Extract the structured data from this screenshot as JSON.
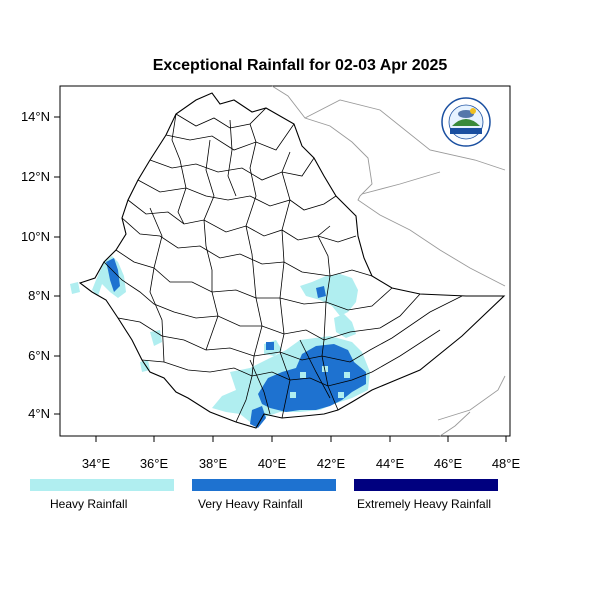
{
  "title": "Exceptional Rainfall for 02-03 Apr 2025",
  "axes": {
    "x_ticks": [
      "34°E",
      "36°E",
      "38°E",
      "40°E",
      "42°E",
      "44°E",
      "46°E",
      "48°E"
    ],
    "y_ticks": [
      "14°N",
      "12°N",
      "10°N",
      "8°N",
      "6°N",
      "4°N"
    ]
  },
  "legend": [
    {
      "label": "Heavy Rainfall",
      "color": "#b0eef0"
    },
    {
      "label": "Very Heavy Rainfall",
      "color": "#1e72d0"
    },
    {
      "label": "Extremely Heavy Rainfall",
      "color": "#00007f"
    }
  ],
  "logo": {
    "icon": "agency-seal-icon"
  },
  "colors": {
    "heavy": "#b0eef0",
    "very_heavy": "#1e72d0",
    "extreme": "#00007f"
  }
}
